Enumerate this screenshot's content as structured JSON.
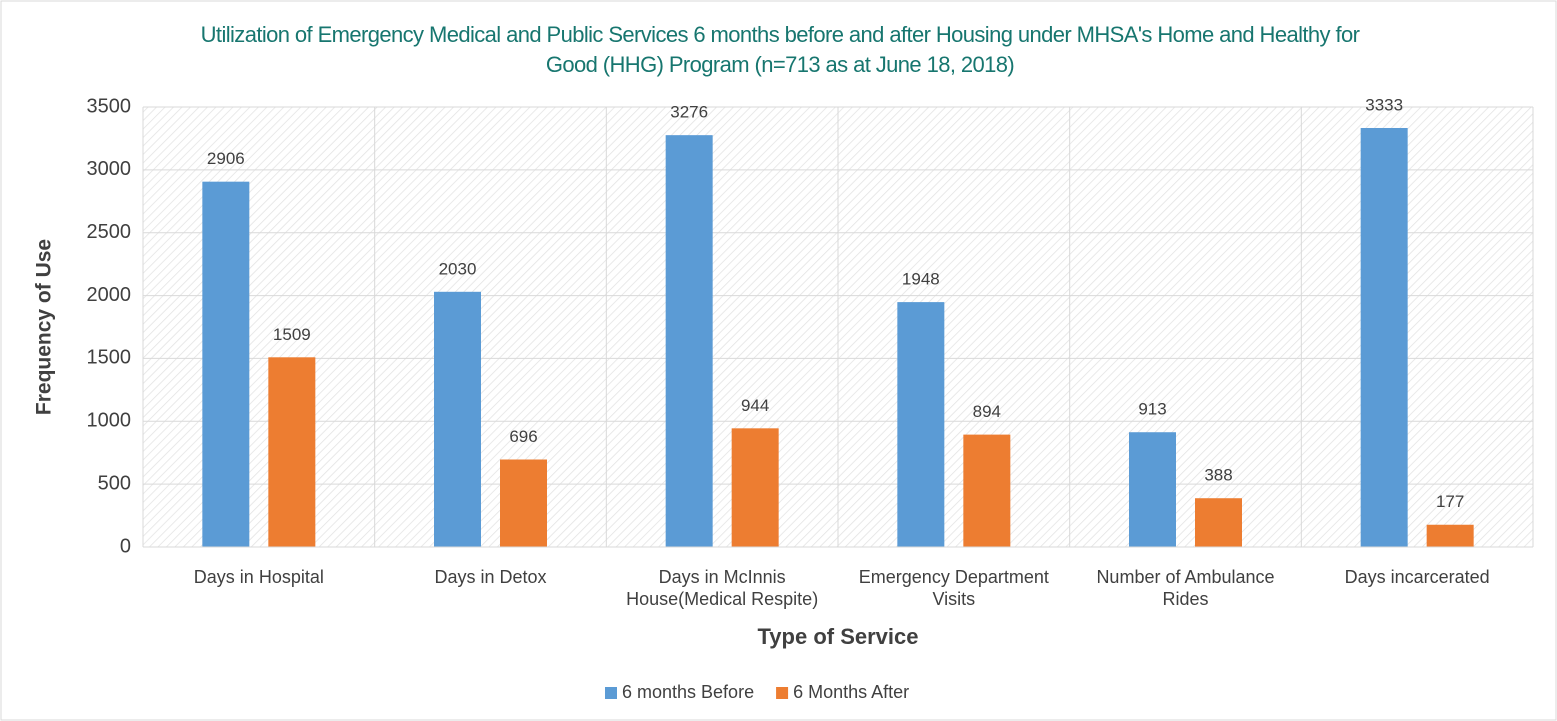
{
  "chart_data": {
    "type": "bar",
    "title": "Utilization of Emergency Medical and Public Services 6 months before and after Housing under MHSA's Home and Healthy for Good (HHG) Program (n=713 as at June 18, 2018)",
    "x_label": "Type of Service",
    "y_label": "Frequency of Use",
    "categories": [
      "Days in Hospital",
      "Days in Detox",
      "Days in McInnis House(Medical Respite)",
      "Emergency Department Visits",
      "Number of Ambulance Rides",
      "Days incarcerated"
    ],
    "series": [
      {
        "name": "6 months Before",
        "color": "#5b9bd5",
        "values": [
          2906,
          2030,
          3276,
          1948,
          913,
          3333
        ]
      },
      {
        "name": "6 Months After",
        "color": "#ed7d31",
        "values": [
          1509,
          696,
          944,
          894,
          388,
          177
        ]
      }
    ],
    "ylim": [
      0,
      3500
    ],
    "yticks": [
      0,
      500,
      1000,
      1500,
      2000,
      2500,
      3000,
      3500
    ],
    "grid": true,
    "legend": "bottom"
  }
}
